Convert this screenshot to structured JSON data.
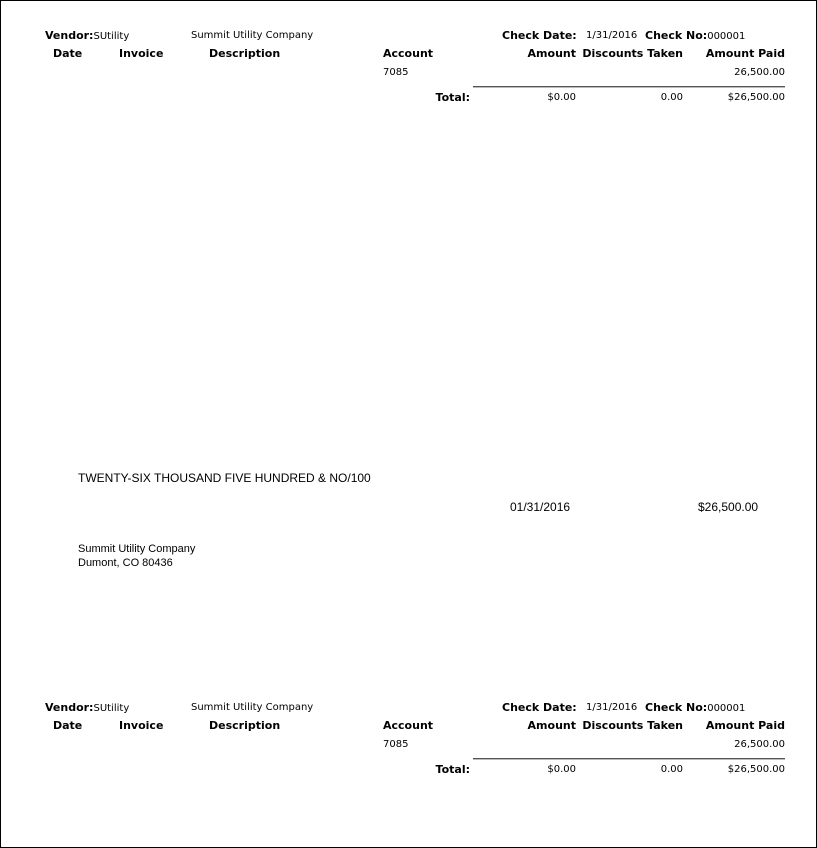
{
  "stub": {
    "vendor_label": "Vendor:",
    "vendor_id": "SUtility",
    "vendor_name": "Summit Utility Company",
    "check_date_label": "Check Date:",
    "check_date": "1/31/2016",
    "check_no_label": "Check No:",
    "check_no": "000001",
    "columns": [
      "Date",
      "Invoice",
      "Description",
      "Account",
      "Amount",
      "Discounts Taken",
      "Amount Paid"
    ],
    "row": {
      "account": "7085",
      "amount_paid": "26,500.00"
    },
    "total_label": "Total:",
    "total_amount": "$0.00",
    "total_discounts": "0.00",
    "total_paid": "$26,500.00"
  },
  "check": {
    "amount_words": "TWENTY-SIX THOUSAND FIVE HUNDRED & NO/100",
    "date": "01/31/2016",
    "amount": "$26,500.00",
    "payee_name": "Summit Utility Company",
    "payee_address": "Dumont, CO  80436"
  }
}
